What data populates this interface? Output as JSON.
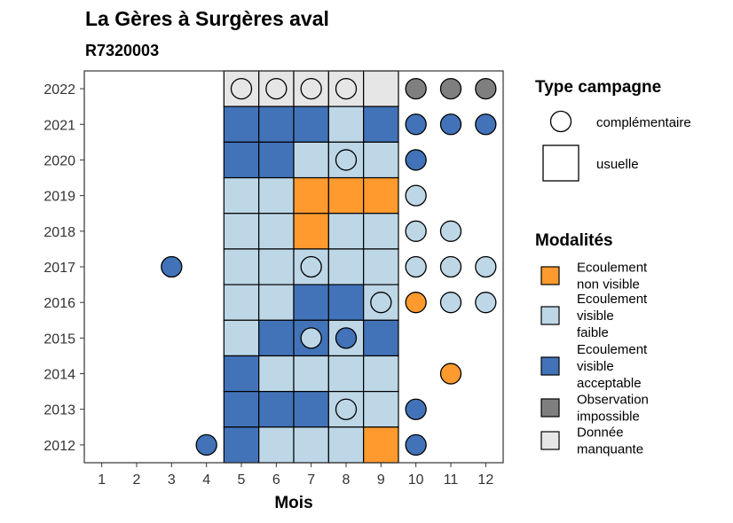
{
  "chart_data": {
    "type": "heatmap",
    "title": "La Gères à Surgères aval",
    "subtitle": "R7320003",
    "xlabel": "Mois",
    "ylabel": "",
    "x_ticks": [
      "1",
      "2",
      "3",
      "4",
      "5",
      "6",
      "7",
      "8",
      "9",
      "10",
      "11",
      "12"
    ],
    "y_ticks": [
      "2012",
      "2013",
      "2014",
      "2015",
      "2016",
      "2017",
      "2018",
      "2019",
      "2020",
      "2021",
      "2022"
    ],
    "xlim": [
      1,
      12
    ],
    "ylim": [
      2012,
      2022
    ],
    "usual_months": [
      5,
      9
    ],
    "colors": {
      "non_visible": "#FF9A2E",
      "faible": "#BDD7E7",
      "acceptable": "#4273B8",
      "impossible": "#7F7F7F",
      "manquante": "#E6E6E6"
    },
    "legend_type": {
      "title": "Type campagne",
      "items": [
        {
          "label": "complémentaire",
          "shape": "circle"
        },
        {
          "label": "usuelle",
          "shape": "square"
        }
      ]
    },
    "legend_modalites": {
      "title": "Modalités",
      "items": [
        {
          "key": "non_visible",
          "lines": [
            "Ecoulement",
            "non visible"
          ]
        },
        {
          "key": "faible",
          "lines": [
            "Ecoulement",
            "visible",
            "faible"
          ]
        },
        {
          "key": "acceptable",
          "lines": [
            "Ecoulement",
            "visible",
            "acceptable"
          ]
        },
        {
          "key": "impossible",
          "lines": [
            "Observation",
            "impossible"
          ]
        },
        {
          "key": "manquante",
          "lines": [
            "Donnée",
            "manquante"
          ]
        }
      ]
    },
    "usual": [
      {
        "year": 2022,
        "month": 5,
        "value": "manquante"
      },
      {
        "year": 2022,
        "month": 6,
        "value": "manquante"
      },
      {
        "year": 2022,
        "month": 7,
        "value": "manquante"
      },
      {
        "year": 2022,
        "month": 8,
        "value": "manquante"
      },
      {
        "year": 2022,
        "month": 9,
        "value": "manquante"
      },
      {
        "year": 2021,
        "month": 5,
        "value": "acceptable"
      },
      {
        "year": 2021,
        "month": 6,
        "value": "acceptable"
      },
      {
        "year": 2021,
        "month": 7,
        "value": "acceptable"
      },
      {
        "year": 2021,
        "month": 8,
        "value": "faible"
      },
      {
        "year": 2021,
        "month": 9,
        "value": "acceptable"
      },
      {
        "year": 2020,
        "month": 5,
        "value": "acceptable"
      },
      {
        "year": 2020,
        "month": 6,
        "value": "acceptable"
      },
      {
        "year": 2020,
        "month": 7,
        "value": "faible"
      },
      {
        "year": 2020,
        "month": 8,
        "value": "faible"
      },
      {
        "year": 2020,
        "month": 9,
        "value": "faible"
      },
      {
        "year": 2019,
        "month": 5,
        "value": "faible"
      },
      {
        "year": 2019,
        "month": 6,
        "value": "faible"
      },
      {
        "year": 2019,
        "month": 7,
        "value": "non_visible"
      },
      {
        "year": 2019,
        "month": 8,
        "value": "non_visible"
      },
      {
        "year": 2019,
        "month": 9,
        "value": "non_visible"
      },
      {
        "year": 2018,
        "month": 5,
        "value": "faible"
      },
      {
        "year": 2018,
        "month": 6,
        "value": "faible"
      },
      {
        "year": 2018,
        "month": 7,
        "value": "non_visible"
      },
      {
        "year": 2018,
        "month": 8,
        "value": "faible"
      },
      {
        "year": 2018,
        "month": 9,
        "value": "faible"
      },
      {
        "year": 2017,
        "month": 5,
        "value": "faible"
      },
      {
        "year": 2017,
        "month": 6,
        "value": "faible"
      },
      {
        "year": 2017,
        "month": 7,
        "value": "faible"
      },
      {
        "year": 2017,
        "month": 8,
        "value": "faible"
      },
      {
        "year": 2017,
        "month": 9,
        "value": "faible"
      },
      {
        "year": 2016,
        "month": 5,
        "value": "faible"
      },
      {
        "year": 2016,
        "month": 6,
        "value": "faible"
      },
      {
        "year": 2016,
        "month": 7,
        "value": "acceptable"
      },
      {
        "year": 2016,
        "month": 8,
        "value": "acceptable"
      },
      {
        "year": 2016,
        "month": 9,
        "value": "faible"
      },
      {
        "year": 2015,
        "month": 5,
        "value": "faible"
      },
      {
        "year": 2015,
        "month": 6,
        "value": "acceptable"
      },
      {
        "year": 2015,
        "month": 7,
        "value": "acceptable"
      },
      {
        "year": 2015,
        "month": 8,
        "value": "faible"
      },
      {
        "year": 2015,
        "month": 9,
        "value": "acceptable"
      },
      {
        "year": 2014,
        "month": 5,
        "value": "acceptable"
      },
      {
        "year": 2014,
        "month": 6,
        "value": "faible"
      },
      {
        "year": 2014,
        "month": 7,
        "value": "faible"
      },
      {
        "year": 2014,
        "month": 8,
        "value": "faible"
      },
      {
        "year": 2014,
        "month": 9,
        "value": "faible"
      },
      {
        "year": 2013,
        "month": 5,
        "value": "acceptable"
      },
      {
        "year": 2013,
        "month": 6,
        "value": "acceptable"
      },
      {
        "year": 2013,
        "month": 7,
        "value": "acceptable"
      },
      {
        "year": 2013,
        "month": 8,
        "value": "faible"
      },
      {
        "year": 2013,
        "month": 9,
        "value": "faible"
      },
      {
        "year": 2012,
        "month": 5,
        "value": "acceptable"
      },
      {
        "year": 2012,
        "month": 6,
        "value": "faible"
      },
      {
        "year": 2012,
        "month": 7,
        "value": "faible"
      },
      {
        "year": 2012,
        "month": 8,
        "value": "faible"
      },
      {
        "year": 2012,
        "month": 9,
        "value": "non_visible"
      }
    ],
    "complementary": [
      {
        "year": 2022,
        "month": 5,
        "value": "manquante"
      },
      {
        "year": 2022,
        "month": 6,
        "value": "manquante"
      },
      {
        "year": 2022,
        "month": 7,
        "value": "manquante"
      },
      {
        "year": 2022,
        "month": 8,
        "value": "manquante"
      },
      {
        "year": 2022,
        "month": 10,
        "value": "impossible"
      },
      {
        "year": 2022,
        "month": 11,
        "value": "impossible"
      },
      {
        "year": 2022,
        "month": 12,
        "value": "impossible"
      },
      {
        "year": 2021,
        "month": 10,
        "value": "acceptable"
      },
      {
        "year": 2021,
        "month": 11,
        "value": "acceptable"
      },
      {
        "year": 2021,
        "month": 12,
        "value": "acceptable"
      },
      {
        "year": 2020,
        "month": 8,
        "value": "faible"
      },
      {
        "year": 2020,
        "month": 10,
        "value": "acceptable"
      },
      {
        "year": 2019,
        "month": 10,
        "value": "faible"
      },
      {
        "year": 2018,
        "month": 10,
        "value": "faible"
      },
      {
        "year": 2018,
        "month": 11,
        "value": "faible"
      },
      {
        "year": 2017,
        "month": 3,
        "value": "acceptable"
      },
      {
        "year": 2017,
        "month": 7,
        "value": "faible"
      },
      {
        "year": 2017,
        "month": 10,
        "value": "faible"
      },
      {
        "year": 2017,
        "month": 11,
        "value": "faible"
      },
      {
        "year": 2017,
        "month": 12,
        "value": "faible"
      },
      {
        "year": 2016,
        "month": 9,
        "value": "faible"
      },
      {
        "year": 2016,
        "month": 10,
        "value": "non_visible"
      },
      {
        "year": 2016,
        "month": 11,
        "value": "faible"
      },
      {
        "year": 2016,
        "month": 12,
        "value": "faible"
      },
      {
        "year": 2015,
        "month": 7,
        "value": "faible"
      },
      {
        "year": 2015,
        "month": 8,
        "value": "acceptable"
      },
      {
        "year": 2014,
        "month": 11,
        "value": "non_visible"
      },
      {
        "year": 2013,
        "month": 8,
        "value": "faible"
      },
      {
        "year": 2013,
        "month": 10,
        "value": "acceptable"
      },
      {
        "year": 2012,
        "month": 4,
        "value": "acceptable"
      },
      {
        "year": 2012,
        "month": 10,
        "value": "acceptable"
      }
    ]
  }
}
